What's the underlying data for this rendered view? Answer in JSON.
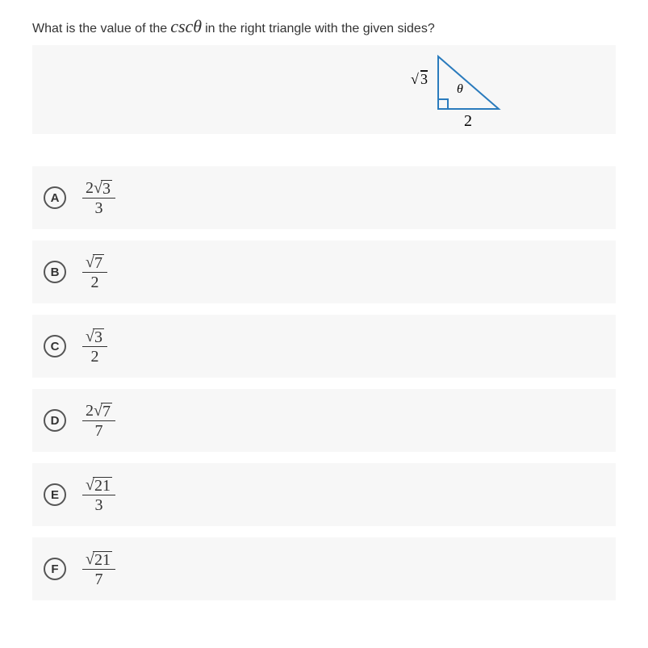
{
  "question": {
    "before": "What is the value of the",
    "trig": "cscθ",
    "after": "in the right triangle with the given sides?"
  },
  "triangle": {
    "leg_vertical_label": "√3",
    "leg_horizontal_label": "2",
    "angle_label": "θ",
    "leg_vertical": "3",
    "leg_horizontal": "2",
    "stroke": "#2a7bbd",
    "stroke_width": 2
  },
  "choices": [
    {
      "letter": "A",
      "num_coeff": "2",
      "num_rad": "3",
      "den": "3"
    },
    {
      "letter": "B",
      "num_coeff": "",
      "num_rad": "7",
      "den": "2"
    },
    {
      "letter": "C",
      "num_coeff": "",
      "num_rad": "3",
      "den": "2"
    },
    {
      "letter": "D",
      "num_coeff": "2",
      "num_rad": "7",
      "den": "7"
    },
    {
      "letter": "E",
      "num_coeff": "",
      "num_rad": "21",
      "den": "3"
    },
    {
      "letter": "F",
      "num_coeff": "",
      "num_rad": "21",
      "den": "7"
    }
  ],
  "colors": {
    "row_bg": "#f7f7f7",
    "text": "#333333"
  }
}
